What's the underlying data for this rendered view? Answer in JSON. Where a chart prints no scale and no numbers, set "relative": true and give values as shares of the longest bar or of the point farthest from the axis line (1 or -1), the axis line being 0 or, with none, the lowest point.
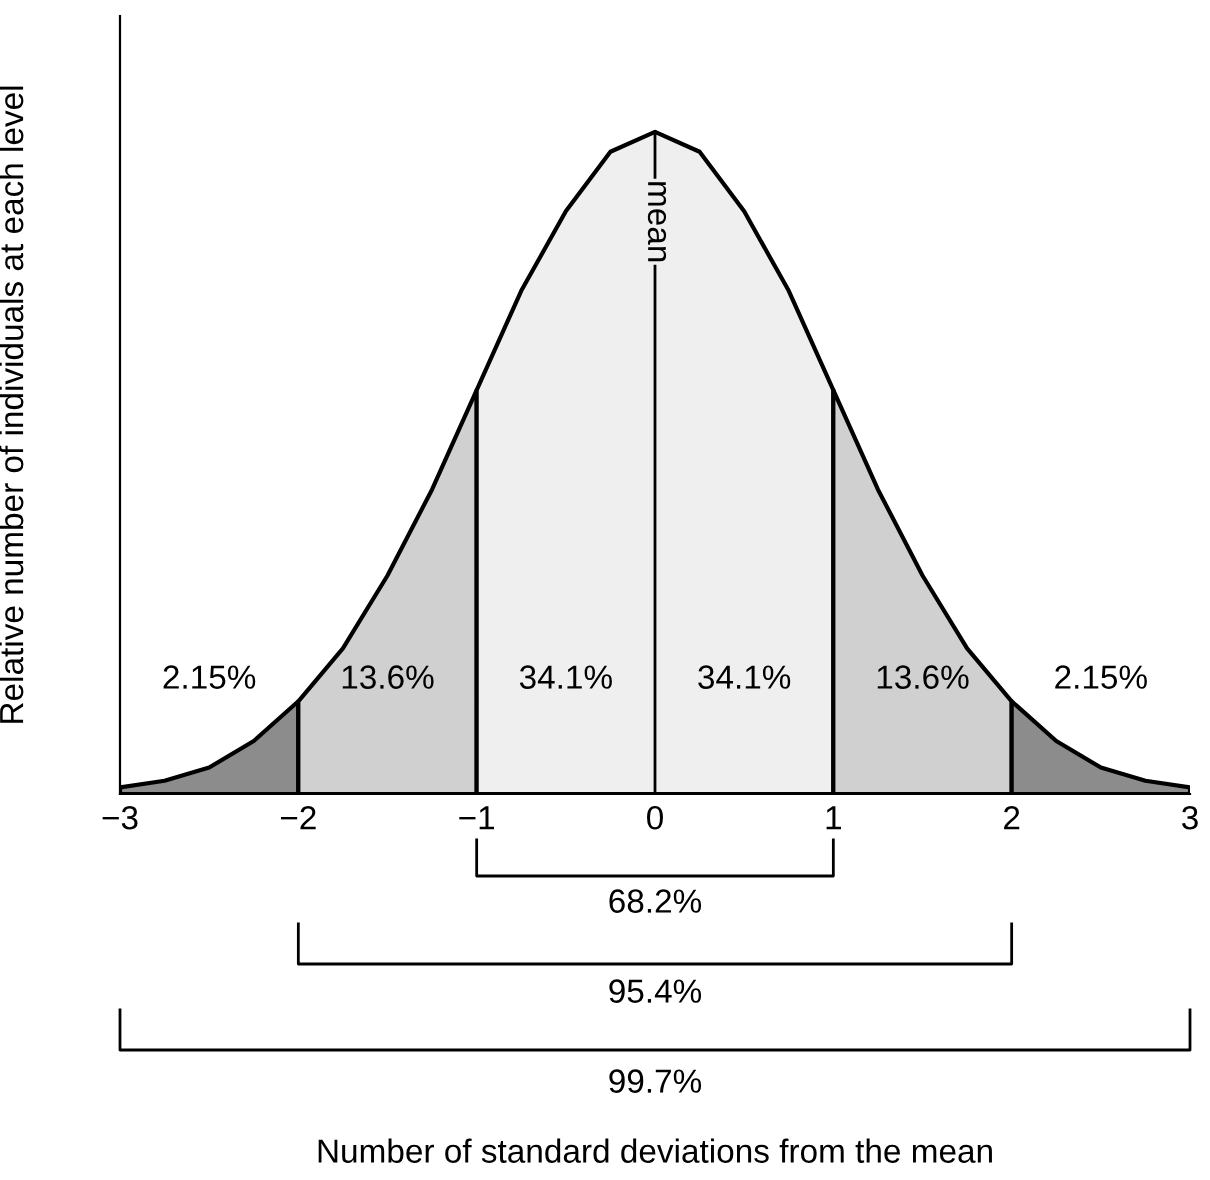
{
  "chart_data": {
    "type": "area",
    "relative": true,
    "ylabel": "Relative number of individuals at each level",
    "series": [
      {
        "color": "#8c8c8c",
        "x": [
          -3,
          -2.75,
          -2.5,
          -2.25,
          -2
        ],
        "values": [
          0.01,
          0.02,
          0.04,
          0.08,
          0.14
        ]
      },
      {
        "color": "#d0d0d0",
        "x": [
          -2,
          -1.75,
          -1.5,
          -1.25,
          -1
        ],
        "values": [
          0.14,
          0.22,
          0.33,
          0.46,
          0.61
        ]
      },
      {
        "color": "#efefef",
        "x": [
          -1,
          -0.75,
          -0.5,
          -0.25,
          0,
          0.25,
          0.5,
          0.75,
          1
        ],
        "values": [
          0.61,
          0.76,
          0.88,
          0.97,
          1,
          0.97,
          0.88,
          0.76,
          0.61
        ]
      },
      {
        "color": "#d0d0d0",
        "x": [
          1,
          1.25,
          1.5,
          1.75,
          2
        ],
        "values": [
          0.61,
          0.46,
          0.33,
          0.22,
          0.14
        ]
      },
      {
        "color": "#8c8c8c",
        "x": [
          2,
          2.25,
          2.5,
          2.75,
          3
        ],
        "values": [
          0.14,
          0.08,
          0.04,
          0.02,
          0.01
        ]
      }
    ],
    "xlim": [
      -3,
      3
    ],
    "xticks": [
      {
        "value": -3,
        "label": "−3"
      },
      {
        "value": -2,
        "label": "−2"
      },
      {
        "value": -1,
        "label": "−1"
      },
      0,
      1,
      2,
      3
    ],
    "tick_labels": "x",
    "ref_lines": [
      {
        "axis": "x",
        "value": 0,
        "label": "mean"
      }
    ],
    "annotations": [
      "2.15%",
      "13.6%",
      "34.1%",
      "34.1%",
      "13.6%",
      "2.15%",
      "68.2%",
      "95.4%",
      "99.7%",
      "Number of standard deviations from the mean"
    ]
  }
}
